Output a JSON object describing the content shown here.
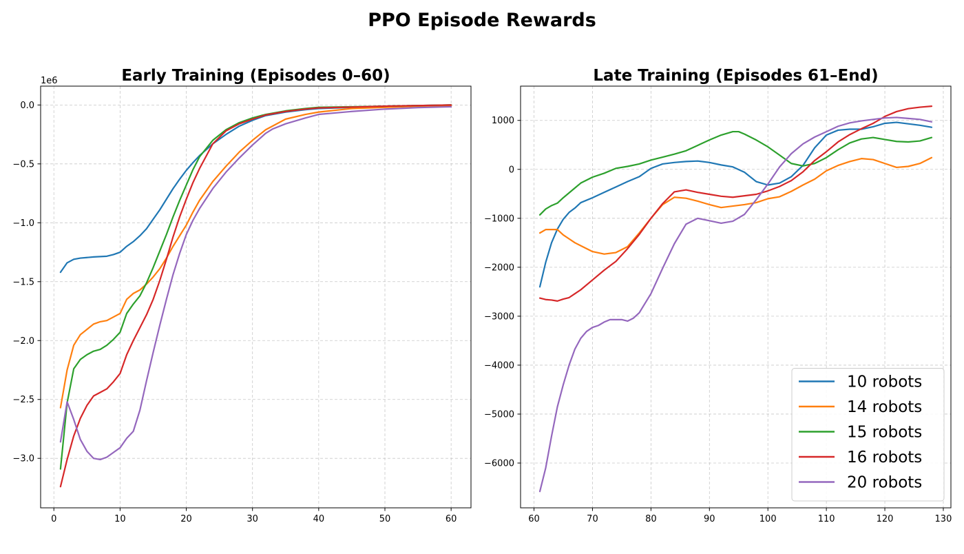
{
  "figure_title": "PPO Episode Rewards",
  "chart_data": [
    {
      "type": "line",
      "title": "Early Training (Episodes 0–60)",
      "xlabel": "",
      "ylabel": "",
      "xlim": [
        -2,
        63
      ],
      "ylim": [
        -3.42,
        0.16
      ],
      "y_scale_label": "1e6",
      "x_ticks": [
        0,
        10,
        20,
        30,
        40,
        50,
        60
      ],
      "y_ticks": [
        0.0,
        -0.5,
        -1.0,
        -1.5,
        -2.0,
        -2.5,
        -3.0
      ],
      "y_tick_labels": [
        "0.0",
        "−0.5",
        "−1.0",
        "−1.5",
        "−2.0",
        "−2.5",
        "−3.0"
      ],
      "grid": true,
      "series": [
        {
          "name": "10 robots",
          "color": "#1f77b4",
          "x": [
            1,
            2,
            3,
            4,
            5,
            6,
            7,
            8,
            9,
            10,
            11,
            12,
            13,
            14,
            15,
            16,
            17,
            18,
            19,
            20,
            21,
            22,
            24,
            26,
            28,
            30,
            32,
            35,
            38,
            40,
            45,
            50,
            55,
            60
          ],
          "y": [
            -1.42,
            -1.34,
            -1.31,
            -1.3,
            -1.295,
            -1.29,
            -1.287,
            -1.284,
            -1.27,
            -1.25,
            -1.2,
            -1.16,
            -1.11,
            -1.05,
            -0.97,
            -0.89,
            -0.8,
            -0.71,
            -0.63,
            -0.555,
            -0.49,
            -0.43,
            -0.33,
            -0.25,
            -0.18,
            -0.13,
            -0.09,
            -0.06,
            -0.04,
            -0.03,
            -0.02,
            -0.01,
            -0.005,
            0
          ]
        },
        {
          "name": "14 robots",
          "color": "#ff7f0e",
          "x": [
            1,
            2,
            3,
            4,
            5,
            6,
            7,
            8,
            9,
            10,
            11,
            12,
            13,
            14,
            15,
            16,
            17,
            18,
            19,
            20,
            21,
            22,
            24,
            26,
            28,
            30,
            32,
            35,
            38,
            40,
            45,
            50,
            55,
            60
          ],
          "y": [
            -2.57,
            -2.25,
            -2.04,
            -1.95,
            -1.905,
            -1.86,
            -1.84,
            -1.83,
            -1.8,
            -1.77,
            -1.65,
            -1.6,
            -1.57,
            -1.52,
            -1.46,
            -1.39,
            -1.3,
            -1.2,
            -1.11,
            -1.02,
            -0.91,
            -0.81,
            -0.65,
            -0.52,
            -0.4,
            -0.3,
            -0.21,
            -0.12,
            -0.08,
            -0.06,
            -0.03,
            -0.02,
            -0.01,
            -0.005
          ]
        },
        {
          "name": "15 robots",
          "color": "#2ca02c",
          "x": [
            1,
            2,
            3,
            4,
            5,
            6,
            7,
            8,
            9,
            10,
            11,
            12,
            13,
            14,
            15,
            16,
            17,
            18,
            19,
            20,
            21,
            22,
            24,
            26,
            28,
            30,
            32,
            35,
            38,
            40,
            45,
            50,
            55,
            60
          ],
          "y": [
            -3.09,
            -2.53,
            -2.24,
            -2.16,
            -2.12,
            -2.09,
            -2.075,
            -2.04,
            -1.99,
            -1.93,
            -1.77,
            -1.69,
            -1.62,
            -1.51,
            -1.38,
            -1.24,
            -1.1,
            -0.95,
            -0.81,
            -0.68,
            -0.55,
            -0.44,
            -0.3,
            -0.21,
            -0.15,
            -0.11,
            -0.08,
            -0.05,
            -0.03,
            -0.02,
            -0.015,
            -0.01,
            -0.005,
            0
          ]
        },
        {
          "name": "16 robots",
          "color": "#d62728",
          "x": [
            1,
            2,
            3,
            4,
            5,
            6,
            7,
            8,
            9,
            10,
            11,
            12,
            13,
            14,
            15,
            16,
            17,
            18,
            19,
            20,
            21,
            22,
            24,
            26,
            28,
            30,
            32,
            35,
            38,
            40,
            45,
            50,
            55,
            60
          ],
          "y": [
            -3.24,
            -3.01,
            -2.81,
            -2.66,
            -2.55,
            -2.47,
            -2.44,
            -2.41,
            -2.35,
            -2.28,
            -2.12,
            -2.0,
            -1.89,
            -1.78,
            -1.65,
            -1.49,
            -1.31,
            -1.12,
            -0.95,
            -0.8,
            -0.66,
            -0.54,
            -0.33,
            -0.22,
            -0.16,
            -0.12,
            -0.085,
            -0.055,
            -0.035,
            -0.025,
            -0.018,
            -0.01,
            -0.005,
            0
          ]
        },
        {
          "name": "20 robots",
          "color": "#9467bd",
          "x": [
            1,
            2,
            3,
            4,
            5,
            6,
            7,
            8,
            9,
            10,
            11,
            12,
            13,
            14,
            15,
            16,
            17,
            18,
            19,
            20,
            21,
            22,
            24,
            26,
            28,
            30,
            31,
            32,
            33,
            35,
            38,
            40,
            45,
            50,
            55,
            60
          ],
          "y": [
            -2.86,
            -2.52,
            -2.67,
            -2.84,
            -2.94,
            -3.0,
            -3.01,
            -2.99,
            -2.95,
            -2.91,
            -2.83,
            -2.77,
            -2.59,
            -2.34,
            -2.1,
            -1.87,
            -1.65,
            -1.44,
            -1.26,
            -1.1,
            -0.98,
            -0.88,
            -0.71,
            -0.57,
            -0.45,
            -0.34,
            -0.29,
            -0.24,
            -0.205,
            -0.16,
            -0.11,
            -0.08,
            -0.055,
            -0.035,
            -0.022,
            -0.015
          ]
        }
      ]
    },
    {
      "type": "line",
      "title": "Late Training (Episodes 61–End)",
      "xlabel": "",
      "ylabel": "",
      "xlim": [
        57.7,
        131.3
      ],
      "ylim": [
        -6915,
        1700
      ],
      "x_ticks": [
        60,
        70,
        80,
        90,
        100,
        110,
        120,
        130
      ],
      "y_ticks": [
        1000,
        0,
        -1000,
        -2000,
        -3000,
        -4000,
        -5000,
        -6000
      ],
      "y_tick_labels": [
        "1000",
        "0",
        "−1000",
        "−2000",
        "−3000",
        "−4000",
        "−5000",
        "−6000"
      ],
      "grid": true,
      "legend_position": "lower-right",
      "series": [
        {
          "name": "10 robots",
          "color": "#1f77b4",
          "x": [
            61,
            62,
            63,
            64,
            65,
            66,
            67,
            68,
            70,
            72,
            74,
            76,
            78,
            80,
            82,
            84,
            86,
            88,
            90,
            92,
            94,
            96,
            98,
            100,
            102,
            104,
            106,
            108,
            110,
            112,
            114,
            116,
            118,
            120,
            122,
            124,
            126,
            128
          ],
          "y": [
            -2400,
            -1900,
            -1500,
            -1220,
            -1020,
            -880,
            -790,
            -680,
            -580,
            -470,
            -360,
            -250,
            -150,
            20,
            110,
            140,
            160,
            170,
            140,
            90,
            50,
            -60,
            -250,
            -320,
            -280,
            -150,
            80,
            440,
            700,
            800,
            820,
            820,
            870,
            940,
            960,
            930,
            900,
            860
          ]
        },
        {
          "name": "14 robots",
          "color": "#ff7f0e",
          "x": [
            61,
            62,
            63,
            64,
            65,
            66,
            67,
            68,
            70,
            72,
            74,
            76,
            78,
            80,
            82,
            84,
            86,
            88,
            90,
            92,
            94,
            96,
            98,
            100,
            102,
            104,
            106,
            108,
            110,
            112,
            114,
            116,
            118,
            120,
            122,
            124,
            126,
            128
          ],
          "y": [
            -1300,
            -1230,
            -1230,
            -1230,
            -1340,
            -1420,
            -1500,
            -1560,
            -1680,
            -1730,
            -1700,
            -1580,
            -1300,
            -1000,
            -720,
            -570,
            -590,
            -650,
            -720,
            -780,
            -750,
            -720,
            -680,
            -600,
            -560,
            -450,
            -320,
            -200,
            -30,
            80,
            160,
            220,
            200,
            120,
            40,
            60,
            120,
            240
          ]
        },
        {
          "name": "15 robots",
          "color": "#2ca02c",
          "x": [
            61,
            62,
            63,
            64,
            65,
            66,
            67,
            68,
            70,
            72,
            74,
            76,
            78,
            80,
            82,
            84,
            86,
            88,
            90,
            92,
            94,
            95,
            96,
            98,
            100,
            102,
            104,
            106,
            108,
            110,
            112,
            114,
            116,
            118,
            120,
            122,
            124,
            126,
            128
          ],
          "y": [
            -930,
            -810,
            -740,
            -690,
            -580,
            -480,
            -380,
            -280,
            -160,
            -80,
            20,
            60,
            110,
            190,
            250,
            310,
            380,
            490,
            600,
            700,
            770,
            770,
            720,
            600,
            460,
            290,
            120,
            70,
            120,
            240,
            400,
            540,
            620,
            650,
            610,
            570,
            560,
            580,
            650
          ]
        },
        {
          "name": "16 robots",
          "color": "#d62728",
          "x": [
            61,
            62,
            63,
            64,
            65,
            66,
            67,
            68,
            70,
            72,
            74,
            76,
            78,
            80,
            82,
            84,
            86,
            88,
            90,
            92,
            94,
            96,
            98,
            100,
            102,
            104,
            106,
            108,
            110,
            112,
            114,
            116,
            118,
            120,
            122,
            124,
            126,
            128
          ],
          "y": [
            -2630,
            -2660,
            -2670,
            -2690,
            -2650,
            -2620,
            -2540,
            -2460,
            -2260,
            -2060,
            -1880,
            -1620,
            -1330,
            -1000,
            -700,
            -460,
            -420,
            -470,
            -510,
            -550,
            -570,
            -540,
            -510,
            -440,
            -350,
            -230,
            -50,
            180,
            360,
            560,
            710,
            830,
            940,
            1080,
            1180,
            1240,
            1270,
            1290
          ]
        },
        {
          "name": "20 robots",
          "color": "#9467bd",
          "x": [
            61,
            62,
            63,
            64,
            65,
            66,
            67,
            68,
            69,
            70,
            71,
            72,
            73,
            74,
            75,
            76,
            77,
            78,
            80,
            82,
            84,
            86,
            88,
            90,
            92,
            94,
            96,
            98,
            100,
            102,
            104,
            106,
            108,
            110,
            112,
            114,
            116,
            118,
            120,
            122,
            124,
            126,
            128
          ],
          "y": [
            -6580,
            -6100,
            -5450,
            -4850,
            -4400,
            -4000,
            -3670,
            -3450,
            -3310,
            -3230,
            -3190,
            -3120,
            -3070,
            -3070,
            -3070,
            -3100,
            -3040,
            -2930,
            -2540,
            -2020,
            -1520,
            -1120,
            -1000,
            -1050,
            -1100,
            -1060,
            -920,
            -620,
            -300,
            50,
            320,
            520,
            660,
            770,
            880,
            950,
            990,
            1020,
            1050,
            1060,
            1040,
            1020,
            970
          ]
        }
      ]
    }
  ]
}
